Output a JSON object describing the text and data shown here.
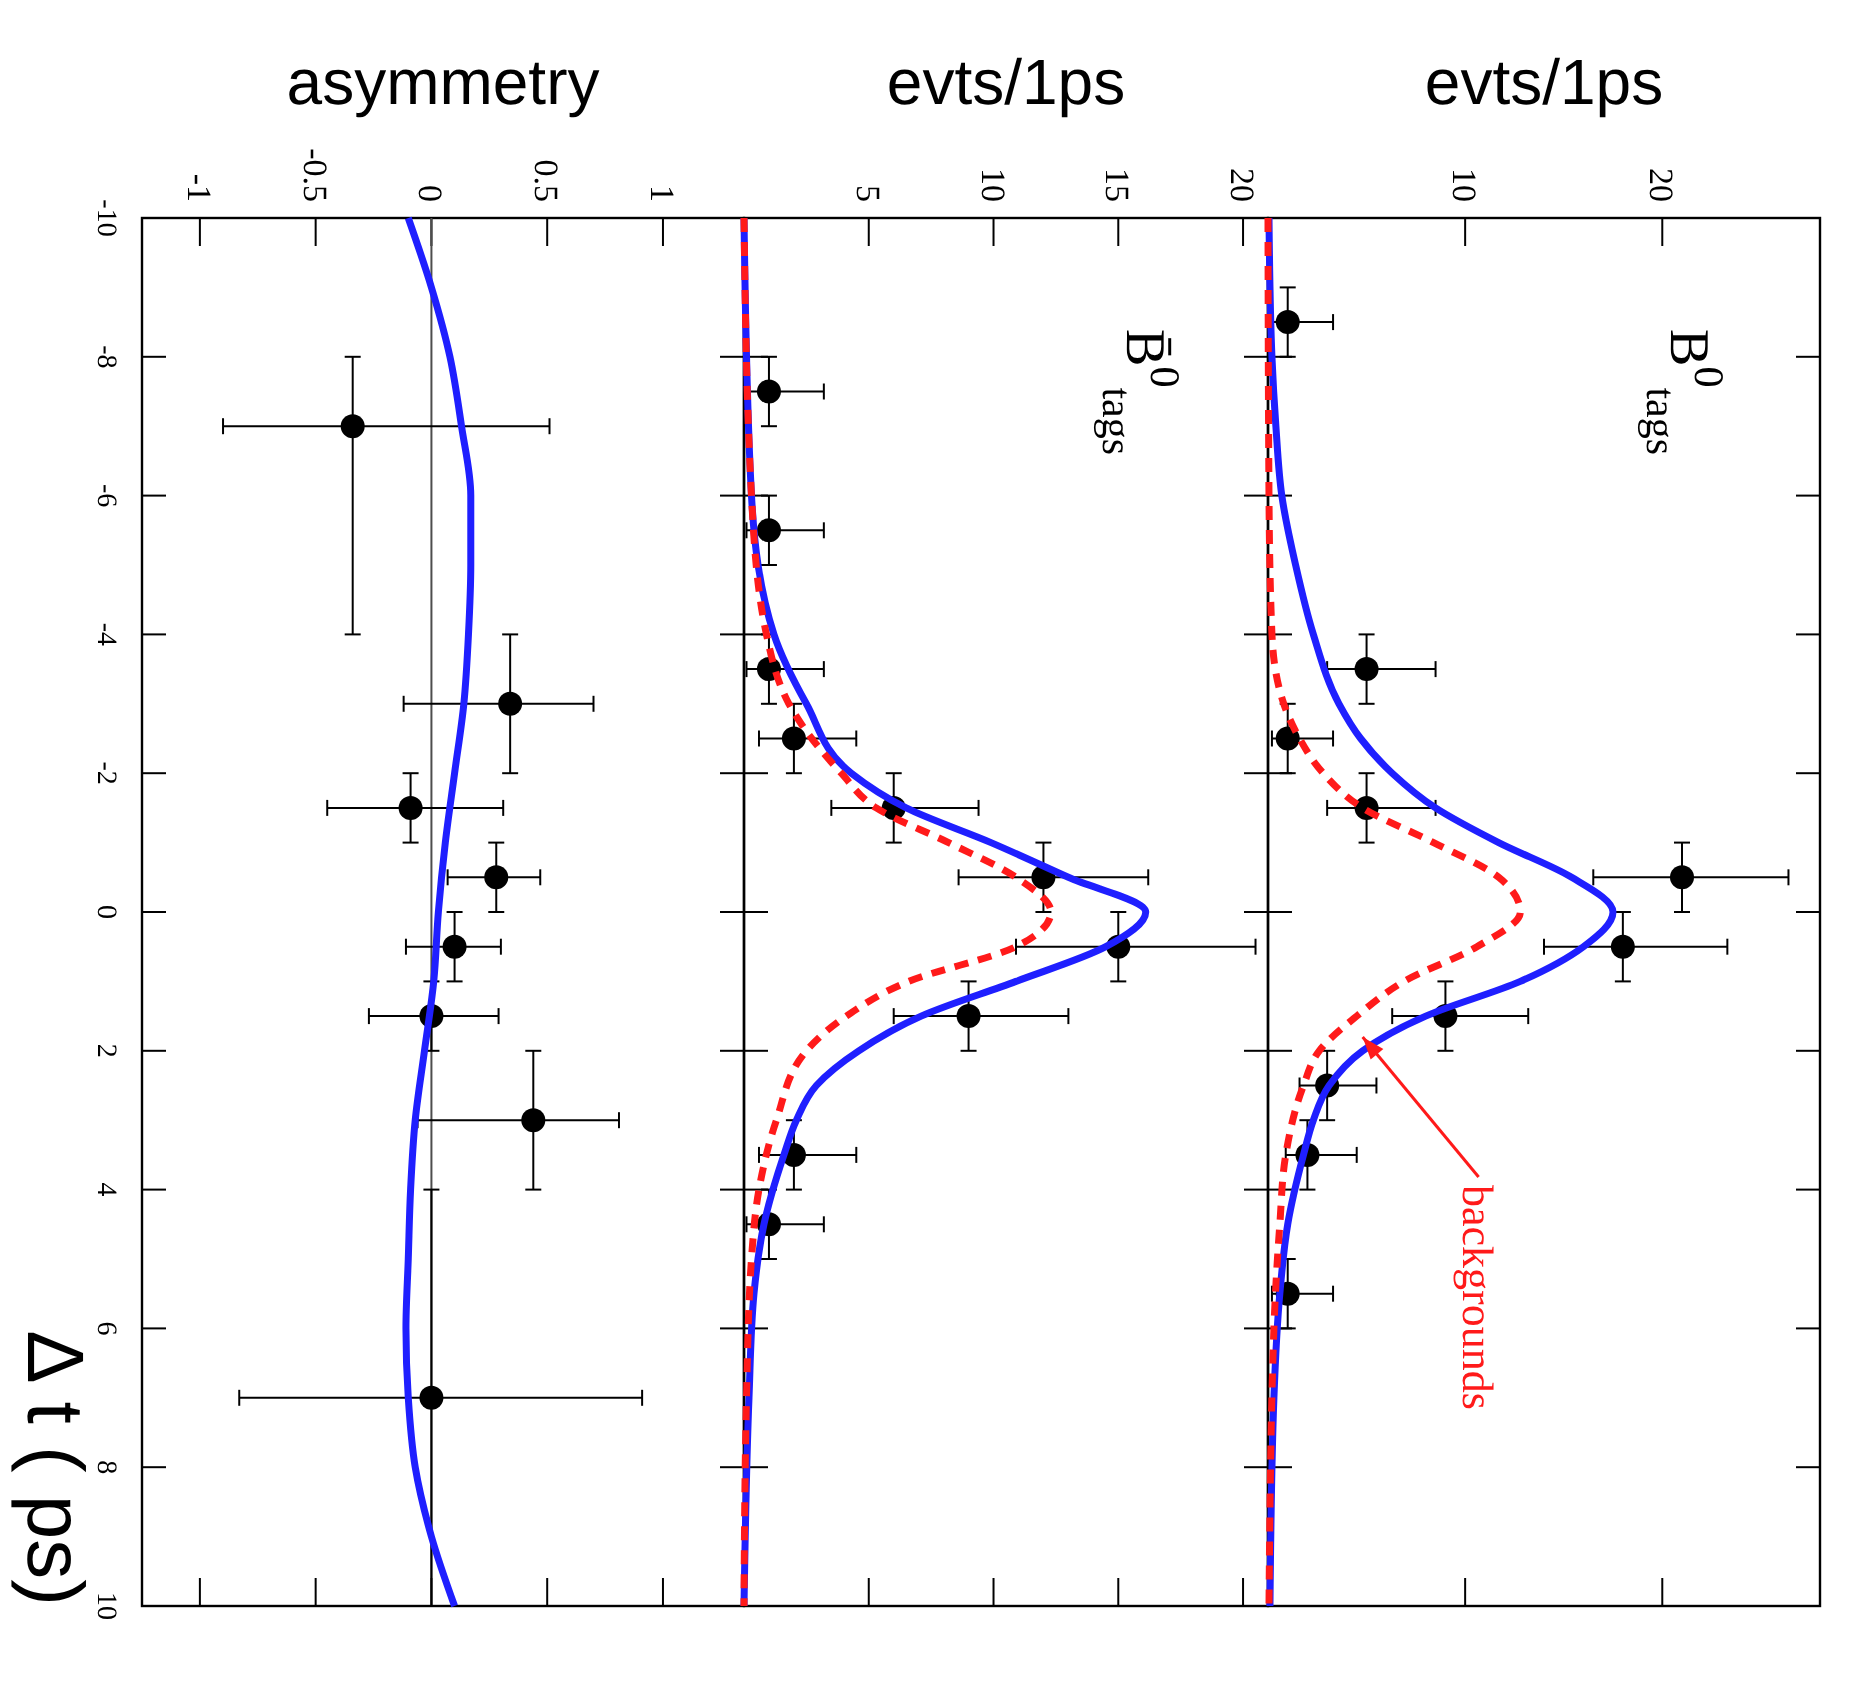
{
  "chart_data": [
    {
      "type": "scatter",
      "xlabel": "asymmetry",
      "ylabel": "Δ t ( ps)",
      "xlim": [
        -1.25,
        1.35
      ],
      "xticks": [
        -1,
        -0.5,
        0,
        0.5,
        1
      ],
      "ylim": [
        10,
        -10
      ],
      "yticks": [
        -10,
        -8,
        -6,
        -4,
        -2,
        0,
        2,
        4,
        6,
        8,
        10
      ],
      "ref_lines": [
        {
          "axis": "x",
          "value": 0,
          "color": "#4d4d4d"
        }
      ],
      "series": [
        {
          "type": "scatter",
          "marker": "circle",
          "color": "#000000",
          "values": [
            -7,
            -3,
            -1.5,
            -0.5,
            0.5,
            1.5,
            3,
            7
          ],
          "x": [
            -0.34,
            0.34,
            -0.09,
            0.28,
            0.1,
            0,
            0.44,
            0
          ],
          "xerrors": [
            [
              -0.9,
              0.51
            ],
            [
              -0.12,
              0.7
            ],
            [
              -0.45,
              0.31
            ],
            [
              0.07,
              0.47
            ],
            [
              -0.11,
              0.3
            ],
            [
              -0.27,
              0.29
            ],
            [
              -0.06,
              0.81
            ],
            [
              -0.83,
              0.91
            ]
          ],
          "errors": [
            [
              -8,
              -4
            ],
            [
              -4,
              -2
            ],
            [
              -2,
              -1
            ],
            [
              -1,
              0
            ],
            [
              0,
              1
            ],
            [
              1,
              2
            ],
            [
              2,
              4
            ],
            [
              4,
              10
            ]
          ]
        },
        {
          "type": "line",
          "marker": "none",
          "color": "#1f1fff",
          "values": [
            -10,
            -9,
            -8,
            -7,
            -6,
            -5,
            -4,
            -3,
            -2,
            -1,
            0,
            1,
            2,
            3,
            4,
            5,
            6,
            7,
            8,
            9,
            10
          ],
          "x": [
            -0.1,
            0,
            0.08,
            0.13,
            0.17,
            0.17,
            0.16,
            0.14,
            0.1,
            0.06,
            0.03,
            0.01,
            -0.03,
            -0.07,
            -0.09,
            -0.1,
            -0.11,
            -0.1,
            -0.07,
            0,
            0.1
          ]
        }
      ]
    },
    {
      "type": "scatter",
      "xlabel": "evts/1ps",
      "annotations": [
        "B̄$^{0}$$_{tags}$"
      ],
      "xlim": [
        0,
        21
      ],
      "xticks": [
        5,
        10,
        15,
        20
      ],
      "ylim": [
        10,
        -10
      ],
      "yticks": [
        -10,
        -8,
        -6,
        -4,
        -2,
        0,
        2,
        4,
        6,
        8,
        10
      ],
      "tick_labels": "x",
      "series": [
        {
          "type": "scatter",
          "marker": "circle",
          "color": "#000000",
          "values": [
            -7.5,
            -5.5,
            -3.5,
            -2.5,
            -1.5,
            -0.5,
            0.5,
            1.5,
            3.5,
            4.5
          ],
          "x": [
            1,
            1,
            1,
            2,
            6,
            12,
            15,
            9,
            2,
            1
          ],
          "xerrors": [
            [
              0.1,
              3.2
            ],
            [
              0.1,
              3.2
            ],
            [
              0.1,
              3.2
            ],
            [
              0.6,
              4.5
            ],
            [
              3.5,
              9.4
            ],
            [
              8.6,
              16.2
            ],
            [
              10.9,
              20.5
            ],
            [
              6,
              13
            ],
            [
              0.6,
              4.5
            ],
            [
              0.1,
              3.2
            ]
          ],
          "errors": [
            0.5,
            0.5,
            0.5,
            0.5,
            0.5,
            0.5,
            0.5,
            0.5,
            0.5,
            0.5
          ]
        },
        {
          "type": "line",
          "marker": "none",
          "color": "#1f1fff",
          "values": [
            -10,
            -6,
            -4,
            -3,
            -2,
            -1.5,
            -1,
            -0.5,
            0,
            0.5,
            1,
            1.5,
            2,
            2.5,
            3,
            3.5,
            4.5,
            5.5,
            7,
            10
          ],
          "x": [
            0,
            0.3,
            1.2,
            2.5,
            4.3,
            6.5,
            9.9,
            13,
            16.1,
            14.5,
            10.9,
            7.1,
            4.6,
            2.9,
            2.1,
            1.6,
            0.8,
            0.4,
            0.2,
            0
          ]
        },
        {
          "type": "line",
          "marker": "none",
          "color": "#ff1a1a",
          "line_style": "dashed",
          "values": [
            -10,
            -6,
            -4,
            -3,
            -2,
            -1.5,
            -1,
            -0.5,
            0,
            0.5,
            1,
            1.5,
            2,
            3,
            4,
            5,
            7,
            10
          ],
          "x": [
            0,
            0.3,
            0.9,
            1.8,
            3.9,
            5.3,
            8.2,
            10.9,
            12.3,
            10.9,
            6.6,
            4.1,
            2.5,
            1.3,
            0.6,
            0.3,
            0.1,
            0
          ]
        }
      ]
    },
    {
      "type": "scatter",
      "xlabel": "evts/1ps",
      "annotations": [
        "B$^{0}$$_{tags}$",
        {
          "text": "backgrounds",
          "x": 4.8,
          "y": 1.8
        }
      ],
      "xlim": [
        0,
        28
      ],
      "xticks": [
        10,
        20
      ],
      "ylim": [
        10,
        -10
      ],
      "yticks": [
        -10,
        -8,
        -6,
        -4,
        -2,
        0,
        2,
        4,
        6,
        8,
        10
      ],
      "tick_labels": "x",
      "series": [
        {
          "type": "scatter",
          "marker": "circle",
          "color": "#000000",
          "values": [
            -8.5,
            -3.5,
            -2.5,
            -1.5,
            -0.5,
            0.5,
            1.5,
            2.5,
            3.5,
            5.5
          ],
          "x": [
            1,
            5,
            1,
            5,
            21,
            18,
            9,
            3,
            2,
            1
          ],
          "xerrors": [
            [
              0.2,
              3.3
            ],
            [
              3,
              8.5
            ],
            [
              0.2,
              3.3
            ],
            [
              3,
              8.5
            ],
            [
              16.5,
              26.4
            ],
            [
              14,
              23.3
            ],
            [
              6.3,
              13.2
            ],
            [
              1.6,
              5.5
            ],
            [
              0.9,
              4.5
            ],
            [
              0.2,
              3.3
            ]
          ],
          "errors": [
            0.5,
            0.5,
            0.5,
            0.5,
            0.5,
            0.5,
            0.5,
            0.5,
            0.5,
            0.5
          ]
        },
        {
          "type": "line",
          "marker": "none",
          "color": "#1f1fff",
          "values": [
            -10,
            -8,
            -7,
            -6,
            -5,
            -4,
            -3,
            -2.5,
            -2,
            -1.5,
            -1,
            -0.5,
            0,
            0.5,
            1,
            1.5,
            2,
            2.5,
            3,
            3.5,
            4.5,
            5.5,
            7,
            10
          ],
          "x": [
            0.05,
            0.2,
            0.4,
            0.7,
            1.4,
            2.3,
            3.6,
            4.7,
            6.3,
            8.5,
            11.7,
            15.4,
            17.5,
            16,
            12.8,
            8,
            4.8,
            3.1,
            2.3,
            1.8,
            1,
            0.6,
            0.3,
            0.1
          ]
        },
        {
          "type": "line",
          "marker": "none",
          "color": "#ff1a1a",
          "line_style": "dashed",
          "values": [
            -10,
            -6,
            -4,
            -3,
            -2.5,
            -2,
            -1.5,
            -1,
            -0.5,
            0,
            0.5,
            1,
            1.5,
            2,
            2.5,
            3.5,
            4.5,
            6,
            10
          ],
          "x": [
            0,
            0.05,
            0.2,
            0.8,
            1.6,
            2.8,
            4.8,
            8.4,
            11.7,
            12.8,
            10.6,
            6.9,
            4.5,
            2.6,
            1.8,
            0.9,
            0.6,
            0.3,
            0.05
          ]
        }
      ]
    }
  ]
}
